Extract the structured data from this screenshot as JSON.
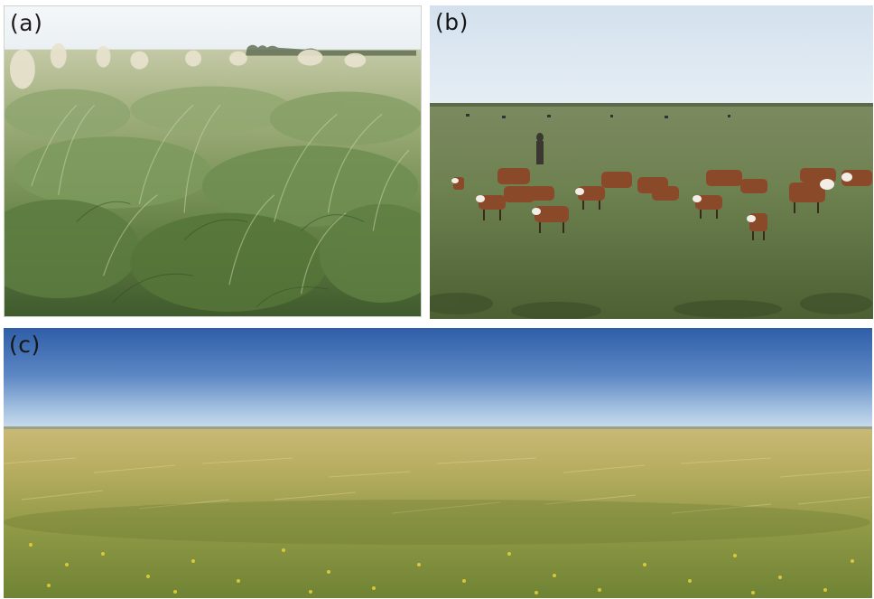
{
  "figure": {
    "panels": [
      {
        "id": "a",
        "label": "(a)",
        "scene": "tussock-grassland-closeup"
      },
      {
        "id": "b",
        "label": "(b)",
        "scene": "cattle-grazing-on-pasture"
      },
      {
        "id": "c",
        "label": "(c)",
        "scene": "open-grassland-panorama"
      }
    ]
  },
  "colors": {
    "background": "#ffffff",
    "sky_light": "#dfeaf3",
    "sky_blue": "#3f6fb9",
    "grass_green": "#7f9a5a",
    "grass_yellow": "#c2b15a",
    "cattle_brown": "#8a4a2a"
  }
}
